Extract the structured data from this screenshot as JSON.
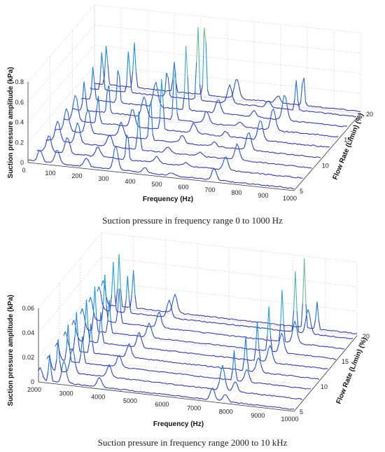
{
  "chart_data": [
    {
      "type": "line",
      "style": "3d-waterfall",
      "xlabel": "Frequency (Hz)",
      "ylabel": "Flow Rate (L/min) (%)",
      "zlabel": "Suction pressure amplitude (kPa)",
      "x_ticks": [
        "0",
        "100",
        "200",
        "300",
        "400",
        "500",
        "600",
        "700",
        "800",
        "900",
        "1000"
      ],
      "y_ticks": [
        "5",
        "10",
        "15",
        "20"
      ],
      "z_ticks": [
        "0",
        "0.2",
        "0.4",
        "0.6",
        "0.8"
      ],
      "xlim": [
        0,
        1000
      ],
      "ylim": [
        5,
        20
      ],
      "zlim": [
        0,
        0.8
      ],
      "grid": true,
      "colors": {
        "low": "#2b2bbf",
        "mid": "#1f9fe0",
        "high": "#f4e81c"
      },
      "caption": "Suction pressure in frequency range 0 to 1000 Hz",
      "series": [
        {
          "flow": 5,
          "peaks": [
            [
              45,
              0.12
            ],
            [
              110,
              0.14
            ],
            [
              220,
              0.09
            ],
            [
              330,
              0.24
            ],
            [
              440,
              0.05
            ],
            [
              700,
              0.12
            ],
            [
              540,
              0.03
            ]
          ]
        },
        {
          "flow": 7,
          "peaks": [
            [
              45,
              0.16
            ],
            [
              115,
              0.16
            ],
            [
              230,
              0.1
            ],
            [
              340,
              0.3
            ],
            [
              450,
              0.06
            ],
            [
              710,
              0.14
            ],
            [
              560,
              0.03
            ]
          ]
        },
        {
          "flow": 9,
          "peaks": [
            [
              45,
              0.2
            ],
            [
              120,
              0.2
            ],
            [
              240,
              0.12
            ],
            [
              350,
              0.38
            ],
            [
              460,
              0.06
            ],
            [
              720,
              0.16
            ],
            [
              580,
              0.04
            ]
          ]
        },
        {
          "flow": 11,
          "peaks": [
            [
              45,
              0.22
            ],
            [
              125,
              0.24
            ],
            [
              250,
              0.14
            ],
            [
              360,
              0.45
            ],
            [
              480,
              0.08
            ],
            [
              730,
              0.18
            ],
            [
              600,
              0.04
            ]
          ]
        },
        {
          "flow": 13,
          "peaks": [
            [
              45,
              0.26
            ],
            [
              130,
              0.28
            ],
            [
              260,
              0.18
            ],
            [
              370,
              0.52
            ],
            [
              490,
              0.1
            ],
            [
              740,
              0.2
            ],
            [
              610,
              0.05
            ]
          ]
        },
        {
          "flow": 15,
          "peaks": [
            [
              45,
              0.3
            ],
            [
              135,
              0.32
            ],
            [
              270,
              0.2
            ],
            [
              385,
              0.58
            ],
            [
              505,
              0.12
            ],
            [
              755,
              0.22
            ],
            [
              630,
              0.05
            ]
          ]
        },
        {
          "flow": 17,
          "peaks": [
            [
              45,
              0.34
            ],
            [
              140,
              0.38
            ],
            [
              280,
              0.24
            ],
            [
              395,
              0.66
            ],
            [
              515,
              0.14
            ],
            [
              765,
              0.26
            ],
            [
              650,
              0.06
            ]
          ]
        },
        {
          "flow": 19,
          "peaks": [
            [
              45,
              0.38
            ],
            [
              145,
              0.42
            ],
            [
              290,
              0.28
            ],
            [
              405,
              0.75
            ],
            [
              525,
              0.18
            ],
            [
              775,
              0.3
            ],
            [
              670,
              0.06
            ]
          ]
        },
        {
          "flow": 20,
          "peaks": [
            [
              45,
              0.4
            ],
            [
              150,
              0.45
            ],
            [
              300,
              0.3
            ],
            [
              415,
              0.8
            ],
            [
              535,
              0.2
            ],
            [
              785,
              0.32
            ],
            [
              690,
              0.07
            ]
          ]
        }
      ]
    },
    {
      "type": "line",
      "style": "3d-waterfall",
      "xlabel": "Frequency (Hz)",
      "ylabel": "Flow Rate (L/min) (%)",
      "zlabel": "Suction pressure amplitude (kPa)",
      "x_ticks": [
        "2000",
        "3000",
        "4000",
        "5000",
        "6000",
        "7000",
        "8000",
        "9000",
        "10000"
      ],
      "y_ticks": [
        "5",
        "10",
        "15",
        "20"
      ],
      "z_ticks": [
        "0",
        "0.02",
        "0.04",
        "0.06"
      ],
      "xlim": [
        2000,
        10000
      ],
      "ylim": [
        5,
        20
      ],
      "zlim": [
        0,
        0.06
      ],
      "grid": true,
      "colors": {
        "low": "#2b2bbf",
        "mid": "#1f9fe0",
        "high": "#f4e81c"
      },
      "caption": "Suction pressure in frequency range 2000 to 10 kHz",
      "series": [
        {
          "flow": 5,
          "peaks": [
            [
              2050,
              0.01
            ],
            [
              2350,
              0.022
            ],
            [
              2800,
              0.018
            ],
            [
              3900,
              0.008
            ],
            [
              7450,
              0.01
            ],
            [
              7850,
              0.006
            ]
          ]
        },
        {
          "flow": 7,
          "peaks": [
            [
              2050,
              0.012
            ],
            [
              2350,
              0.026
            ],
            [
              2800,
              0.02
            ],
            [
              3950,
              0.01
            ],
            [
              7500,
              0.02
            ],
            [
              7900,
              0.008
            ]
          ]
        },
        {
          "flow": 9,
          "peaks": [
            [
              2050,
              0.014
            ],
            [
              2400,
              0.03
            ],
            [
              2850,
              0.022
            ],
            [
              4000,
              0.01
            ],
            [
              7600,
              0.024
            ],
            [
              8000,
              0.01
            ]
          ]
        },
        {
          "flow": 11,
          "peaks": [
            [
              2050,
              0.015
            ],
            [
              2400,
              0.032
            ],
            [
              2850,
              0.024
            ],
            [
              4050,
              0.011
            ],
            [
              7700,
              0.028
            ],
            [
              8100,
              0.012
            ]
          ]
        },
        {
          "flow": 13,
          "peaks": [
            [
              2050,
              0.016
            ],
            [
              2450,
              0.034
            ],
            [
              2900,
              0.025
            ],
            [
              4100,
              0.012
            ],
            [
              7800,
              0.032
            ],
            [
              8200,
              0.014
            ]
          ]
        },
        {
          "flow": 15,
          "peaks": [
            [
              2050,
              0.017
            ],
            [
              2450,
              0.036
            ],
            [
              2900,
              0.027
            ],
            [
              4150,
              0.012
            ],
            [
              7900,
              0.036
            ],
            [
              8300,
              0.016
            ]
          ]
        },
        {
          "flow": 17,
          "peaks": [
            [
              2050,
              0.018
            ],
            [
              2500,
              0.038
            ],
            [
              2950,
              0.028
            ],
            [
              4200,
              0.013
            ],
            [
              8050,
              0.042
            ],
            [
              8450,
              0.018
            ]
          ]
        },
        {
          "flow": 19,
          "peaks": [
            [
              2050,
              0.019
            ],
            [
              2500,
              0.04
            ],
            [
              2950,
              0.03
            ],
            [
              4250,
              0.014
            ],
            [
              8200,
              0.05
            ],
            [
              8600,
              0.02
            ]
          ]
        },
        {
          "flow": 20,
          "peaks": [
            [
              2050,
              0.02
            ],
            [
              2550,
              0.042
            ],
            [
              3000,
              0.031
            ],
            [
              4300,
              0.015
            ],
            [
              8350,
              0.056
            ],
            [
              8750,
              0.022
            ]
          ]
        }
      ]
    }
  ]
}
